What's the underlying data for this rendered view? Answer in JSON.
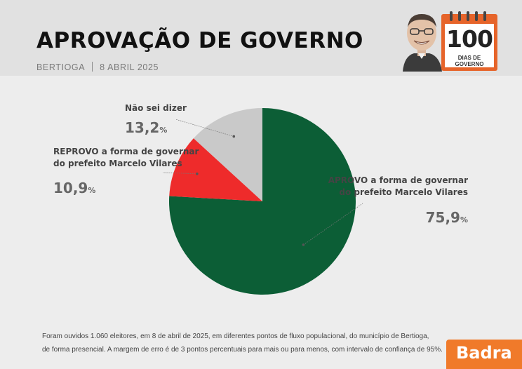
{
  "header": {
    "title": "APROVAÇÃO DE GOVERNO",
    "location": "BERTIOGA",
    "date": "8 ABRIL 2025"
  },
  "badge": {
    "number": "100",
    "text": "DIAS DE GOVERNO",
    "color": "#e6642a"
  },
  "chart_data": {
    "type": "pie",
    "slices": [
      {
        "label_line1": "APROVO a forma de governar",
        "label_line2": "do prefeito Marcelo Vilares",
        "value": 75.9,
        "display_number": "75,9",
        "display_unit": "%",
        "color": "#0c5e36"
      },
      {
        "label_line1": "REPROVO a forma de governar",
        "label_line2": "do prefeito Marcelo Vilares",
        "value": 10.9,
        "display_number": "10,9",
        "display_unit": "%",
        "color": "#ee2b2b"
      },
      {
        "label_line1": "Não sei dizer",
        "label_line2": "",
        "value": 13.2,
        "display_number": "13,2",
        "display_unit": "%",
        "color": "#c9c9c9"
      }
    ]
  },
  "footnote": {
    "line1": "Foram ouvidos 1.060 eleitores, em 8 de abril de 2025, em diferentes pontos de fluxo populacional, do município de Bertioga,",
    "line2": "de forma presencial. A margem de erro é de 3 pontos percentuais para mais ou para menos, com intervalo de confiança de 95%."
  },
  "brand": {
    "name": "Badra",
    "color": "#f07a2a"
  }
}
